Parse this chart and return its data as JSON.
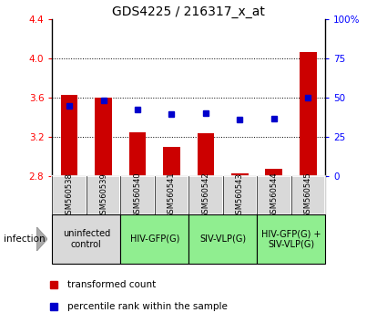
{
  "title": "GDS4225 / 216317_x_at",
  "samples": [
    "GSM560538",
    "GSM560539",
    "GSM560540",
    "GSM560541",
    "GSM560542",
    "GSM560543",
    "GSM560544",
    "GSM560545"
  ],
  "bar_values": [
    3.63,
    3.6,
    3.25,
    3.1,
    3.24,
    2.83,
    2.87,
    4.07
  ],
  "dot_values_left": [
    3.52,
    3.575,
    3.475,
    3.43,
    3.445,
    3.375,
    3.385,
    3.6
  ],
  "ylim_left": [
    2.8,
    4.4
  ],
  "ylim_right": [
    0,
    100
  ],
  "yticks_left": [
    2.8,
    3.2,
    3.6,
    4.0,
    4.4
  ],
  "yticks_right": [
    0,
    25,
    50,
    75,
    100
  ],
  "ytick_labels_right": [
    "0",
    "25",
    "50",
    "75",
    "100%"
  ],
  "bar_color": "#cc0000",
  "dot_color": "#0000cc",
  "grid_lines": [
    3.2,
    3.6,
    4.0
  ],
  "groups": [
    {
      "label": "uninfected\ncontrol",
      "start": 0,
      "end": 2,
      "color": "#d9d9d9"
    },
    {
      "label": "HIV-GFP(G)",
      "start": 2,
      "end": 4,
      "color": "#90ee90"
    },
    {
      "label": "SIV-VLP(G)",
      "start": 4,
      "end": 6,
      "color": "#90ee90"
    },
    {
      "label": "HIV-GFP(G) +\nSIV-VLP(G)",
      "start": 6,
      "end": 8,
      "color": "#90ee90"
    }
  ],
  "legend_items": [
    {
      "label": "transformed count",
      "color": "#cc0000",
      "marker": "s"
    },
    {
      "label": "percentile rank within the sample",
      "color": "#0000cc",
      "marker": "s"
    }
  ],
  "infection_label": "infection",
  "sample_bg_color": "#d9d9d9",
  "title_fontsize": 10,
  "tick_fontsize": 7.5,
  "sample_fontsize": 6,
  "group_fontsize": 7,
  "legend_fontsize": 7.5
}
